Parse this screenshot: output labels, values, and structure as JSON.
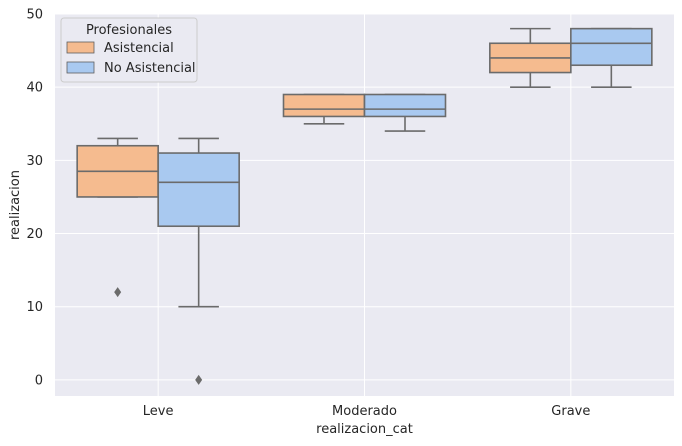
{
  "chart_data": {
    "type": "boxplot",
    "title": "",
    "xlabel": "realizacion_cat",
    "ylabel": "realizacion",
    "categories": [
      "Leve",
      "Moderado",
      "Grave"
    ],
    "ylim": [
      -2.2,
      50
    ],
    "yticks": [
      0,
      10,
      20,
      30,
      40,
      50
    ],
    "grid": true,
    "legend": {
      "title": "Profesionales",
      "placement": "top-left"
    },
    "series": [
      {
        "name": "Asistencial",
        "color": "#f5bb8f",
        "boxes": [
          {
            "category": "Leve",
            "whisker_low": 25,
            "q1": 25,
            "median": 28.5,
            "q3": 32,
            "whisker_high": 33,
            "outliers": [
              12
            ]
          },
          {
            "category": "Moderado",
            "whisker_low": 35,
            "q1": 36,
            "median": 37,
            "q3": 39,
            "whisker_high": 39,
            "outliers": []
          },
          {
            "category": "Grave",
            "whisker_low": 40,
            "q1": 42,
            "median": 44,
            "q3": 46,
            "whisker_high": 48,
            "outliers": []
          }
        ]
      },
      {
        "name": "No Asistencial",
        "color": "#a9c9f0",
        "boxes": [
          {
            "category": "Leve",
            "whisker_low": 10,
            "q1": 21,
            "median": 27,
            "q3": 31,
            "whisker_high": 33,
            "outliers": [
              0
            ]
          },
          {
            "category": "Moderado",
            "whisker_low": 34,
            "q1": 36,
            "median": 37,
            "q3": 39,
            "whisker_high": 39,
            "outliers": []
          },
          {
            "category": "Grave",
            "whisker_low": 40,
            "q1": 43,
            "median": 46,
            "q3": 48,
            "whisker_high": 48,
            "outliers": []
          }
        ]
      }
    ]
  }
}
